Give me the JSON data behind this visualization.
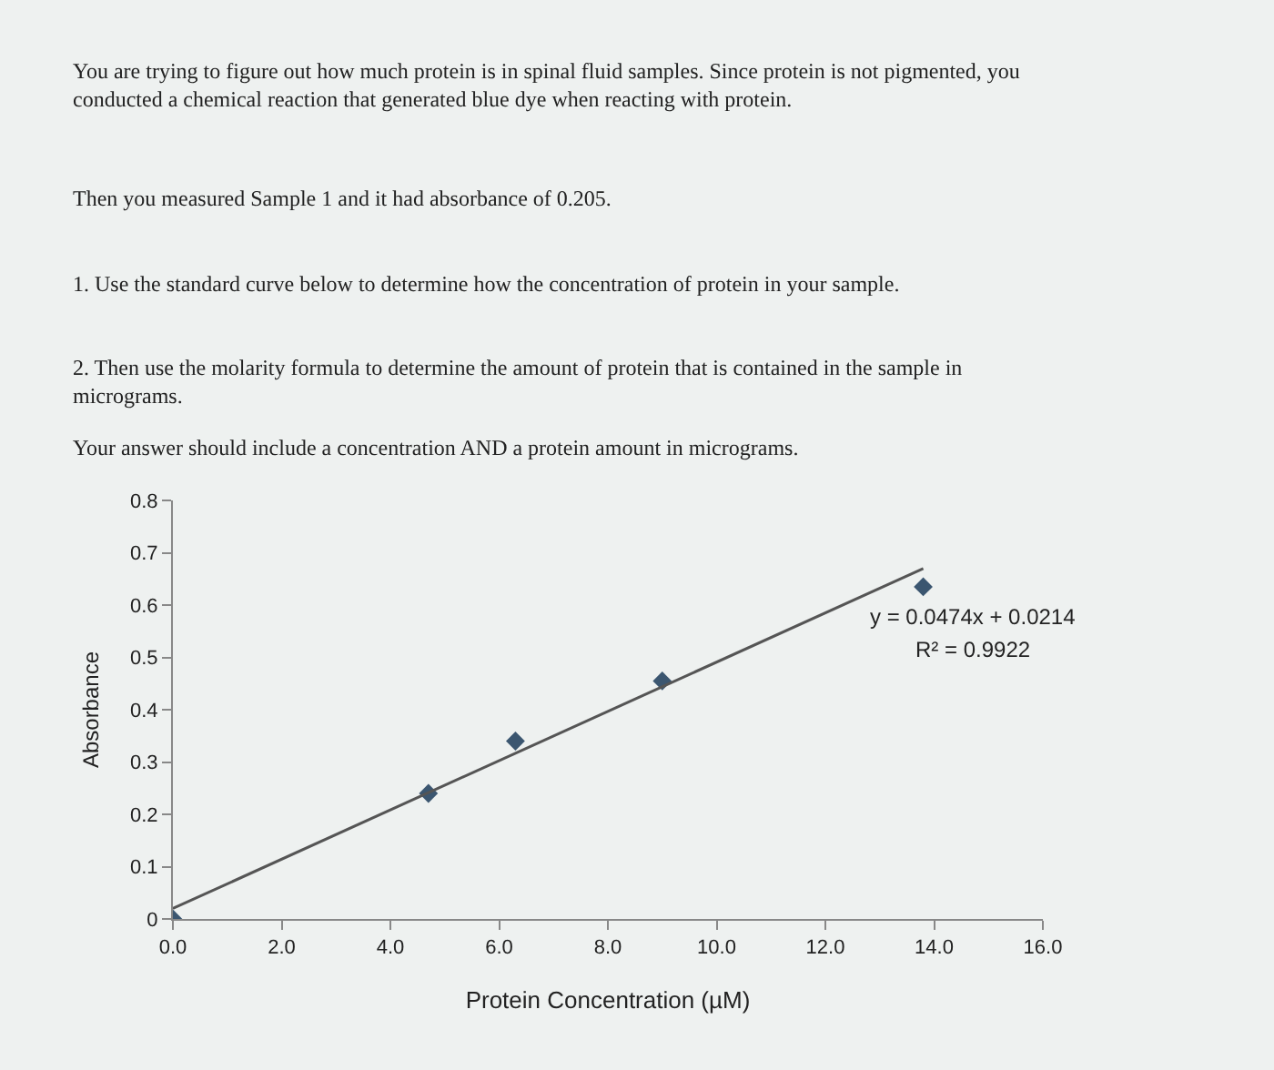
{
  "chart_data": {
    "type": "scatter",
    "xlabel": "Protein Concentration (µM)",
    "ylabel": "Absorbance",
    "annotations": [
      "You are trying to figure out how much protein is in spinal fluid samples. Since protein is not pigmented, you conducted a chemical reaction that generated blue dye when reacting with protein.",
      "Then you measured Sample 1 and it had absorbance of 0.205.",
      "1. Use the standard curve below to determine how the concentration of protein in your sample.",
      "2. Then use the molarity formula to determine the amount of protein that is contained in the sample in micrograms.",
      "Your answer should include a concentration AND a protein amount in micrograms.",
      "y = 0.0474x + 0.0214",
      "R² = 0.9922"
    ],
    "series": [
      {
        "color": "#3b5670",
        "marker": "diamond",
        "x": [
          0,
          4.7,
          6.3,
          9.0,
          13.8
        ],
        "values": [
          0,
          0.24,
          0.34,
          0.455,
          0.635
        ]
      },
      {
        "type": "line",
        "color": "#555555",
        "x": [
          0,
          13.8
        ],
        "values": [
          0.02,
          0.67
        ]
      }
    ],
    "xlim": [
      0,
      16
    ],
    "xticks": [
      {
        "value": 0,
        "label": "0.0"
      },
      {
        "value": 2,
        "label": "2.0"
      },
      {
        "value": 4,
        "label": "4.0"
      },
      {
        "value": 6,
        "label": "6.0"
      },
      {
        "value": 8,
        "label": "8.0"
      },
      {
        "value": 10,
        "label": "10.0"
      },
      {
        "value": 12,
        "label": "12.0"
      },
      {
        "value": 14,
        "label": "14.0"
      },
      {
        "value": 16,
        "label": "16.0"
      }
    ],
    "ylim": [
      0,
      0.8
    ],
    "yticks": [
      0,
      0.1,
      0.2,
      0.3,
      0.4,
      0.5,
      0.6,
      0.7,
      0.8
    ],
    "grid": false,
    "legend": false
  }
}
